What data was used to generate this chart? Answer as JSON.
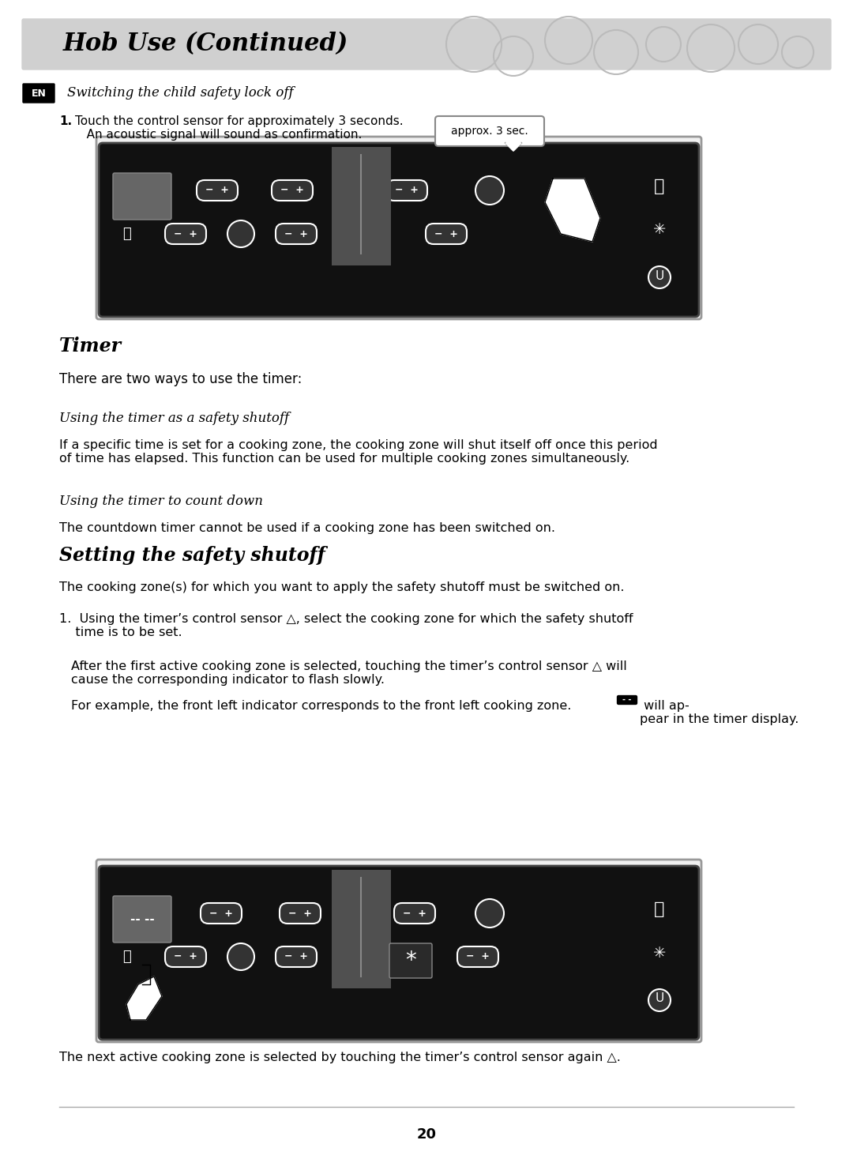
{
  "title": "Hob Use (Continued)",
  "title_bg": "#d0d0d0",
  "page_bg": "#ffffff",
  "page_number": "20",
  "section_en_label": "EN",
  "subsection1_title": "Switching the child safety lock off",
  "subsection1_step1": "1. Touch the control sensor for approximately 3 seconds.\n   An acoustic signal will sound as confirmation.",
  "timer_title": "Timer",
  "timer_intro": "There are two ways to use the timer:",
  "safety_shutoff_subtitle": "Using the timer as a safety shutoff",
  "safety_shutoff_text": "If a specific time is set for a cooking zone, the cooking zone will shut itself off once this period\nof time has elapsed. This function can be used for multiple cooking zones simultaneously.",
  "countdown_subtitle": "Using the timer to count down",
  "countdown_text": "The countdown timer cannot be used if a cooking zone has been switched on.",
  "setting_title": "Setting the safety shutoff",
  "setting_intro": "The cooking zone(s) for which you want to apply the safety shutoff must be switched on.",
  "setting_step1a": "1.  Using the timer’s control sensor △, select the cooking zone for which the safety shutoff\n    time is to be set.",
  "setting_step1b": "    After the first active cooking zone is selected, touching the timer’s control sensor △ will\n    cause the corresponding indicator to flash slowly.",
  "setting_step1c": "    For example, the front left indicator corresponds to the front left cooking zone.",
  "setting_step1c2": " will ap-\n    pear in the timer display.",
  "bottom_text": "The next active cooking zone is selected by touching the timer’s control sensor again △.",
  "panel_bg": "#111111",
  "panel_border": "#888888",
  "button_color": "#333333",
  "button_border": "#ffffff",
  "display_gray": "#666666"
}
